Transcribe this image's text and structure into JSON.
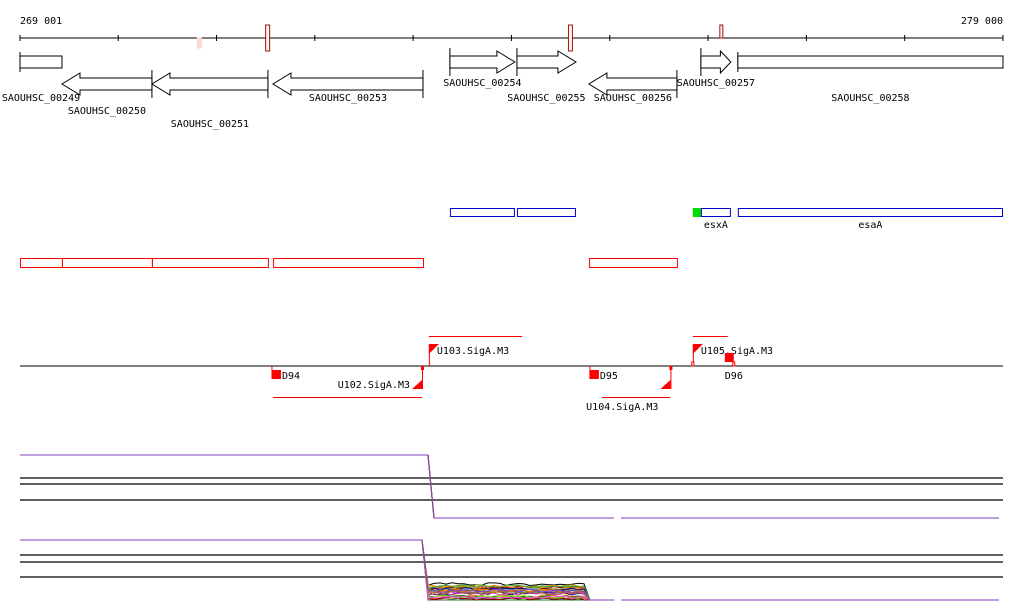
{
  "ruler": {
    "start_label": "269 001",
    "end_label": "279 000",
    "start": 269001,
    "end": 279000,
    "tick_interval": 1000
  },
  "genes": [
    {
      "name": "SAOUHSC_00249",
      "start": 269001,
      "end": 269428,
      "strand": "box"
    },
    {
      "name": "SAOUHSC_00250",
      "start": 269428,
      "end": 270343,
      "strand": "-"
    },
    {
      "name": "SAOUHSC_00251",
      "start": 270343,
      "end": 271523,
      "strand": "-"
    },
    {
      "name": "SAOUHSC_00253",
      "start": 271574,
      "end": 273100,
      "strand": "-"
    },
    {
      "name": "SAOUHSC_00254",
      "start": 273374,
      "end": 274035,
      "strand": "+"
    },
    {
      "name": "SAOUHSC_00255",
      "start": 274056,
      "end": 274656,
      "strand": "+"
    },
    {
      "name": "SAOUHSC_00256",
      "start": 274788,
      "end": 275683,
      "strand": "-"
    },
    {
      "name": "SAOUHSC_00257",
      "start": 275927,
      "end": 276232,
      "strand": "+"
    },
    {
      "name": "SAOUHSC_00258",
      "start": 276303,
      "end": 279000,
      "strand": "box"
    }
  ],
  "ruler_marks": [
    {
      "pos": 270825,
      "color": "#f5d5c8"
    },
    {
      "pos": 271520,
      "color": "#a01010"
    },
    {
      "pos": 274600,
      "color": "#a01010"
    },
    {
      "pos": 276140,
      "color": "#a01010"
    }
  ],
  "blue_features": [
    {
      "label": "",
      "start": 273374,
      "end": 274035
    },
    {
      "label": "",
      "start": 274056,
      "end": 274656
    },
    {
      "label": "esxA",
      "start": 275927,
      "end": 276232
    },
    {
      "label": "esaA",
      "start": 276303,
      "end": 279000
    }
  ],
  "green_marker": {
    "start": 275845,
    "end": 275927
  },
  "red_features": [
    {
      "start": 269001,
      "end": 269428
    },
    {
      "start": 269428,
      "end": 270343
    },
    {
      "start": 270343,
      "end": 271523
    },
    {
      "start": 271574,
      "end": 273100
    },
    {
      "start": 274788,
      "end": 275683
    }
  ],
  "promoters": [
    {
      "label": "D94",
      "pos": 271564,
      "type": "D",
      "side": "below"
    },
    {
      "label": "U102.SigA.M3",
      "pos": 273090,
      "type": "U",
      "strand": "-",
      "line_start": 271574,
      "line_end": 273090
    },
    {
      "label": "U103.SigA.M3",
      "pos": 273160,
      "type": "U",
      "strand": "+",
      "line_start": 273160,
      "line_end": 274110
    },
    {
      "label": "D95",
      "pos": 274798,
      "type": "D",
      "side": "below"
    },
    {
      "label": "U104.SigA.M3",
      "pos": 275617,
      "type": "U",
      "strand": "-",
      "line_start": 274920,
      "line_end": 275617
    },
    {
      "label": "U105.SigA.M3",
      "pos": 275845,
      "type": "U",
      "strand": "+",
      "line_start": 275845,
      "line_end": 276200
    },
    {
      "label": "D96",
      "pos": 276170,
      "type": "D",
      "side": "above"
    }
  ],
  "colors": {
    "feature_red": "#ff0000",
    "feature_blue": "#0000cc",
    "marker_green": "#00dd00",
    "axis": "#000000"
  }
}
